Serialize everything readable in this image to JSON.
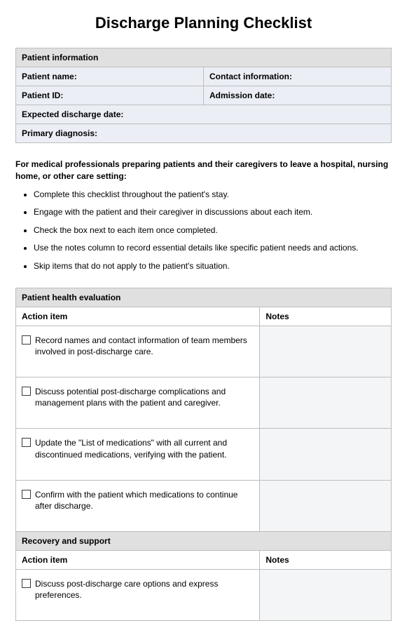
{
  "title": "Discharge Planning Checklist",
  "patient_info": {
    "header": "Patient information",
    "rows": [
      {
        "left": "Patient name:",
        "right": "Contact information:"
      },
      {
        "left": "Patient ID:",
        "right": "Admission date:"
      }
    ],
    "full_rows": [
      "Expected discharge date:",
      "Primary diagnosis:"
    ]
  },
  "intro": "For medical professionals preparing patients and their caregivers to leave a hospital, nursing home, or other care setting:",
  "instructions": [
    "Complete this checklist throughout the patient's stay.",
    "Engage with the patient and their caregiver in discussions about each item.",
    "Check the box next to each item once completed.",
    "Use the notes column to record essential details like specific patient needs and actions.",
    "Skip items that do not apply to the patient's situation."
  ],
  "columns": {
    "action": "Action item",
    "notes": "Notes"
  },
  "sections": [
    {
      "title": "Patient health evaluation",
      "items": [
        "Record names and contact information of team members involved in post-discharge care.",
        "Discuss potential post-discharge complications and management plans with the patient and caregiver.",
        "Update the \"List of medications\" with all current and discontinued medications, verifying with the patient.",
        "Confirm with the patient which medications to continue after discharge."
      ]
    },
    {
      "title": "Recovery and support",
      "items": [
        "Discuss post-discharge care options and express preferences."
      ]
    }
  ]
}
